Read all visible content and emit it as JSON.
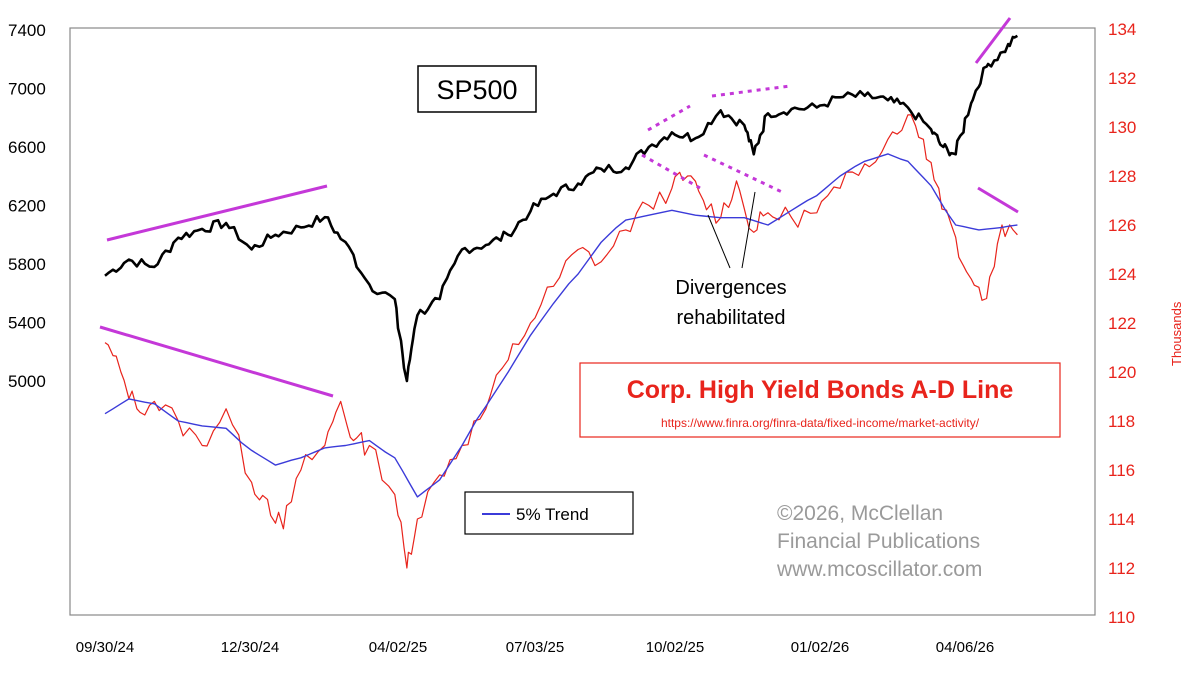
{
  "chart_data": {
    "type": "line",
    "x_ticks": [
      "09/30/24",
      "12/30/24",
      "04/02/25",
      "07/03/25",
      "10/02/25",
      "01/02/26",
      "04/06/26"
    ],
    "left_axis": {
      "ylim": [
        3800,
        7600
      ],
      "ticks": [
        5000,
        5400,
        5800,
        6200,
        6600,
        7000,
        7400
      ]
    },
    "right_axis": {
      "title": "Thousands",
      "ylim": [
        110,
        134
      ],
      "ticks": [
        110,
        112,
        114,
        116,
        118,
        120,
        122,
        124,
        126,
        128,
        130,
        132,
        134
      ]
    },
    "series": [
      {
        "name": "SP500",
        "axis": "left",
        "color": "#000000",
        "x": [
          "2024-09-30",
          "2024-10-15",
          "2024-10-31",
          "2024-11-15",
          "2024-11-30",
          "2024-12-15",
          "2024-12-31",
          "2025-01-15",
          "2025-01-31",
          "2025-02-15",
          "2025-02-28",
          "2025-03-15",
          "2025-03-31",
          "2025-04-08",
          "2025-04-15",
          "2025-04-30",
          "2025-05-15",
          "2025-05-31",
          "2025-06-15",
          "2025-06-30",
          "2025-07-15",
          "2025-07-31",
          "2025-08-15",
          "2025-08-31",
          "2025-09-15",
          "2025-09-30",
          "2025-10-15",
          "2025-10-31",
          "2025-11-15",
          "2025-11-21",
          "2025-11-30",
          "2025-12-15",
          "2025-12-31",
          "2026-01-15",
          "2026-01-31",
          "2026-02-15",
          "2026-02-28",
          "2026-03-15",
          "2026-03-23",
          "2026-03-31",
          "2026-04-10",
          "2026-04-20",
          "2026-05-01",
          "2026-05-10"
        ],
        "values": [
          5720,
          5830,
          5780,
          5980,
          6040,
          6080,
          5900,
          6000,
          6050,
          6120,
          5950,
          5660,
          5560,
          5000,
          5450,
          5560,
          5900,
          5930,
          6000,
          6160,
          6280,
          6350,
          6450,
          6460,
          6600,
          6700,
          6660,
          6850,
          6750,
          6550,
          6830,
          6860,
          6870,
          6940,
          6950,
          6920,
          6870,
          6720,
          6600,
          6550,
          6900,
          7150,
          7250,
          7360
        ]
      },
      {
        "name": "Corp. High Yield Bonds A-D Line",
        "axis": "right",
        "color": "#e8241c",
        "x": [
          "2024-09-30",
          "2024-10-10",
          "2024-10-20",
          "2024-10-31",
          "2024-11-15",
          "2024-11-30",
          "2024-12-15",
          "2024-12-31",
          "2025-01-10",
          "2025-01-20",
          "2025-01-31",
          "2025-02-15",
          "2025-02-25",
          "2025-03-05",
          "2025-03-15",
          "2025-03-31",
          "2025-04-08",
          "2025-04-15",
          "2025-04-30",
          "2025-05-15",
          "2025-05-31",
          "2025-06-15",
          "2025-06-30",
          "2025-07-15",
          "2025-07-31",
          "2025-08-15",
          "2025-08-31",
          "2025-09-15",
          "2025-09-30",
          "2025-10-10",
          "2025-10-20",
          "2025-10-31",
          "2025-11-10",
          "2025-11-21",
          "2025-11-30",
          "2025-12-15",
          "2025-12-31",
          "2026-01-15",
          "2026-01-31",
          "2026-02-15",
          "2026-02-28",
          "2026-03-10",
          "2026-03-20",
          "2026-03-31",
          "2026-04-10",
          "2026-04-20",
          "2026-04-30",
          "2026-05-10"
        ],
        "values": [
          121.2,
          120.0,
          118.5,
          118.8,
          118.0,
          117.0,
          118.5,
          115.5,
          114.8,
          113.6,
          116.0,
          117.0,
          118.8,
          117.2,
          117.0,
          115.0,
          112.0,
          114.0,
          115.8,
          117.0,
          118.5,
          120.5,
          122.0,
          123.5,
          125.0,
          124.5,
          125.8,
          126.8,
          127.5,
          128.0,
          127.0,
          126.3,
          127.8,
          125.7,
          126.5,
          126.3,
          126.5,
          127.5,
          128.5,
          129.5,
          130.5,
          129.5,
          127.5,
          125.5,
          123.8,
          123.0,
          126.0,
          125.6
        ]
      },
      {
        "name": "5% Trend",
        "axis": "right",
        "color": "#3b3bd9",
        "x": [
          "2024-09-30",
          "2024-10-15",
          "2024-10-31",
          "2024-11-15",
          "2024-11-30",
          "2024-12-15",
          "2024-12-31",
          "2025-01-15",
          "2025-01-31",
          "2025-02-15",
          "2025-02-28",
          "2025-03-15",
          "2025-03-31",
          "2025-04-15",
          "2025-04-30",
          "2025-05-15",
          "2025-05-31",
          "2025-06-15",
          "2025-06-30",
          "2025-07-15",
          "2025-07-31",
          "2025-08-15",
          "2025-08-31",
          "2025-09-15",
          "2025-09-30",
          "2025-10-15",
          "2025-10-31",
          "2025-11-15",
          "2025-11-30",
          "2025-12-15",
          "2025-12-31",
          "2026-01-15",
          "2026-01-31",
          "2026-02-15",
          "2026-02-28",
          "2026-03-15",
          "2026-03-31",
          "2026-04-15",
          "2026-04-30",
          "2026-05-10"
        ],
        "values": [
          118.3,
          118.9,
          118.7,
          118.0,
          117.8,
          117.7,
          116.8,
          116.2,
          116.5,
          116.9,
          117.0,
          117.2,
          116.5,
          114.9,
          115.6,
          117.0,
          118.6,
          120.0,
          121.5,
          122.8,
          124.0,
          125.3,
          126.2,
          126.4,
          126.6,
          126.4,
          126.3,
          126.3,
          126.0,
          126.6,
          127.2,
          128.0,
          128.6,
          128.9,
          128.6,
          127.6,
          126.0,
          125.8,
          125.9,
          126.0
        ]
      }
    ],
    "annotations": {
      "sp500_label": "SP500",
      "hy_title": "Corp. High Yield Bonds A-D Line",
      "hy_url": "https://www.finra.org/finra-data/fixed-income/market-activity/",
      "divergence_text": [
        "Divergences",
        "rehabilitated"
      ],
      "copyright": [
        "©2026, McClellan",
        "Financial Publications",
        "www.mcoscillator.com"
      ],
      "legend_label": "5% Trend"
    },
    "grid": false,
    "colors": {
      "sp500": "#000000",
      "ad_line": "#e8241c",
      "trend": "#3b3bd9",
      "trendline": "#c438d8"
    }
  }
}
